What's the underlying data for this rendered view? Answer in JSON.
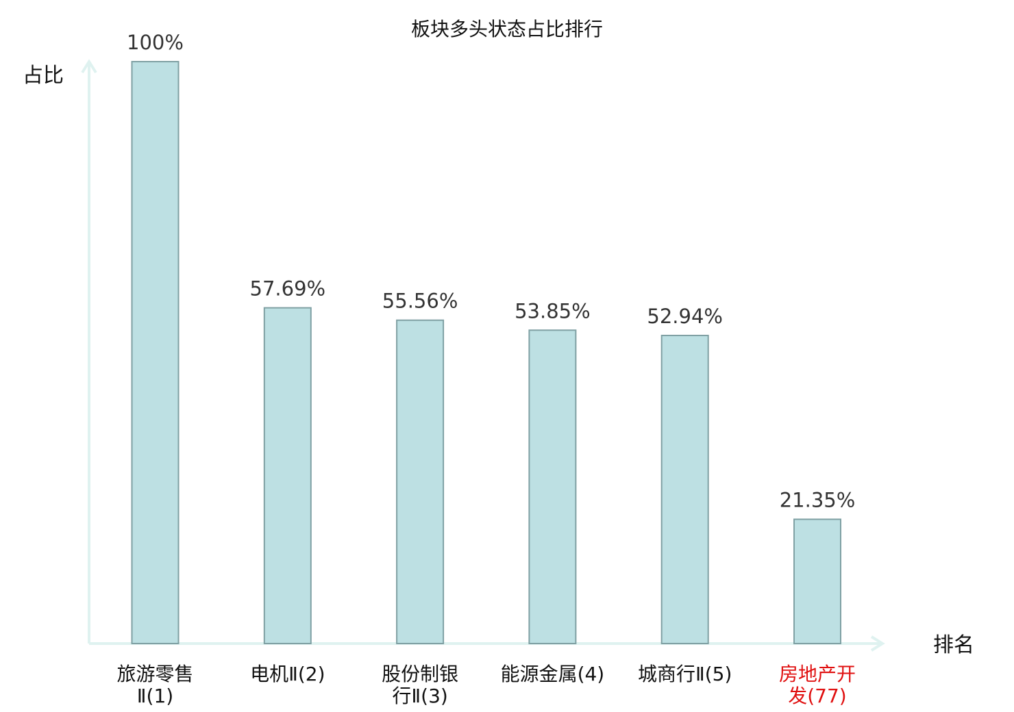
{
  "chart_data": {
    "type": "bar",
    "title": "板块多头状态占比排行",
    "ylabel": "占比",
    "xlabel": "排名",
    "ylim": [
      0,
      100
    ],
    "grid": false,
    "categories": [
      [
        "旅游零售",
        "Ⅱ(1)"
      ],
      [
        "电机Ⅱ(2)"
      ],
      [
        "股份制银",
        "行Ⅱ(3)"
      ],
      [
        "能源金属(4)"
      ],
      [
        "城商行Ⅱ(5)"
      ],
      [
        "房地产开",
        "发(77)"
      ]
    ],
    "values": [
      100,
      57.69,
      55.56,
      53.85,
      52.94,
      21.35
    ],
    "value_labels": [
      "100%",
      "57.69%",
      "55.56%",
      "53.85%",
      "52.94%",
      "21.35%"
    ],
    "category_colors": [
      "#111111",
      "#111111",
      "#111111",
      "#111111",
      "#111111",
      "#e01010"
    ],
    "colors": {
      "bar_fill": "#bde0e3",
      "bar_stroke": "#7fa0a3",
      "axis": "#dff2f0"
    }
  }
}
